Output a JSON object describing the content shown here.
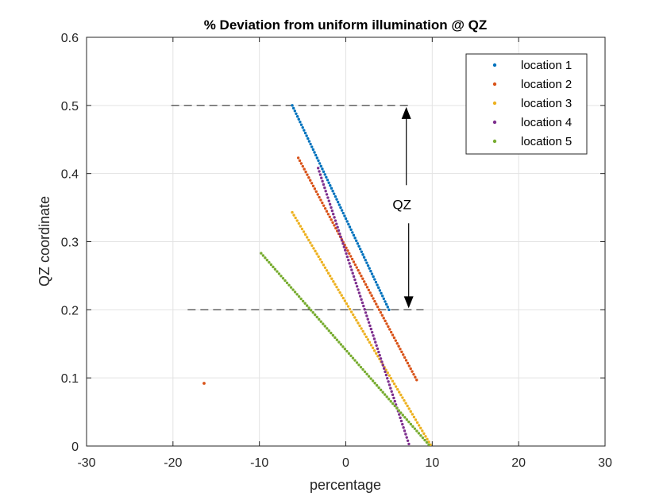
{
  "chart_data": {
    "type": "scatter",
    "title": "% Deviation from uniform illumination @ QZ",
    "xlabel": "percentage",
    "ylabel": "QZ coordinate",
    "xlim": [
      -30,
      30
    ],
    "ylim": [
      0,
      0.6
    ],
    "xticks": [
      "-30",
      "-20",
      "-10",
      "0",
      "10",
      "20",
      "30"
    ],
    "yticks": [
      "0",
      "0.1",
      "0.2",
      "0.3",
      "0.4",
      "0.5",
      "0.6"
    ],
    "grid": true,
    "legend_position": "top-right",
    "series": [
      {
        "name": "location 1",
        "color": "#0072BD",
        "x_start": -6.2,
        "x_end": 5.0,
        "y_start": 0.5,
        "y_end": 0.2,
        "n": 75
      },
      {
        "name": "location 2",
        "color": "#D95319",
        "x_start": -5.5,
        "x_end": 8.2,
        "y_start": 0.423,
        "y_end": 0.097,
        "n": 80,
        "extra_points": [
          [
            -16.4,
            0.092
          ]
        ]
      },
      {
        "name": "location 3",
        "color": "#EDB120",
        "x_start": -6.2,
        "x_end": 9.8,
        "y_start": 0.343,
        "y_end": 0.002,
        "n": 85
      },
      {
        "name": "location 4",
        "color": "#7E2F8E",
        "x_start": -3.2,
        "x_end": 7.3,
        "y_start": 0.408,
        "y_end": 0.003,
        "n": 85
      },
      {
        "name": "location 5",
        "color": "#77AC30",
        "x_start": -9.8,
        "x_end": 9.6,
        "y_start": 0.283,
        "y_end": 0.002,
        "n": 85
      }
    ],
    "annotations": {
      "label": "QZ",
      "upper_line": {
        "x1": -20.2,
        "x2": 7.3,
        "y": 0.5
      },
      "lower_line": {
        "x1": -18.3,
        "x2": 9.0,
        "y": 0.2
      },
      "arrow_x": 7.0,
      "label_pos": [
        6.5,
        0.355
      ]
    }
  }
}
